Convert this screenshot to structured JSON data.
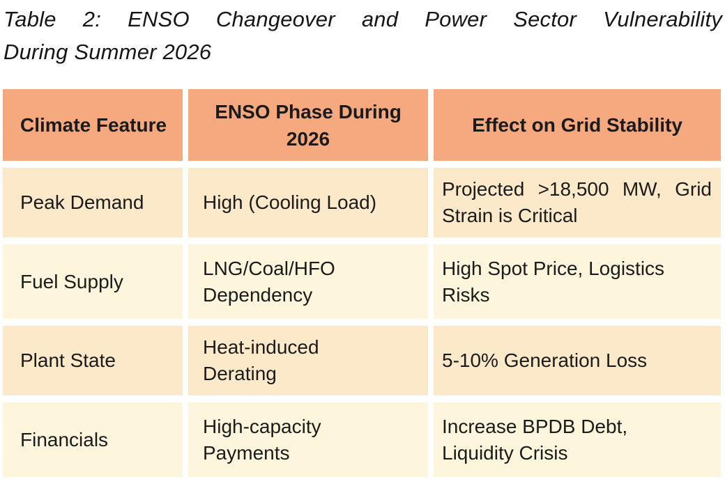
{
  "title": {
    "line1": "Table 2: ENSO Changeover and Power Sector Vulnerability",
    "line2": "During Summer 2026"
  },
  "table": {
    "headers": {
      "feature": "Climate Feature",
      "phase": "ENSO Phase During\n2026",
      "effect": "Effect on Grid Stability"
    },
    "rows": [
      {
        "feature": "Peak Demand",
        "phase": "High (Cooling Load)",
        "effect": "Projected >18,500 MW, Grid Strain is Critical"
      },
      {
        "feature": "Fuel Supply",
        "phase": "LNG/Coal/HFO\nDependency",
        "effect": "High Spot Price, Logistics\nRisks"
      },
      {
        "feature": "Plant State",
        "phase": "Heat-induced\nDerating",
        "effect": "5-10% Generation Loss"
      },
      {
        "feature": "Financials",
        "phase": "High-capacity\nPayments",
        "effect": "Increase BPDB Debt,\nLiquidity Crisis"
      }
    ],
    "colors": {
      "header_bg": "#f6a87e",
      "row_odd_bg": "#fce9c9",
      "row_even_bg": "#fdf6dc",
      "text": "#1b1b1b"
    }
  }
}
